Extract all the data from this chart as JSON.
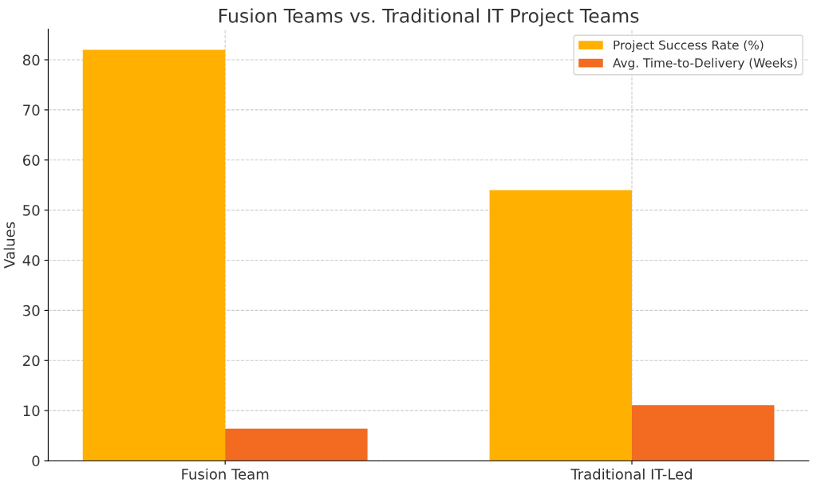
{
  "chart_data": {
    "type": "bar",
    "title": "Fusion Teams vs. Traditional IT Project Teams",
    "ylabel": "Values",
    "categories": [
      "Fusion Team",
      "Traditional IT-Led"
    ],
    "series": [
      {
        "name": "Project Success Rate (%)",
        "color": "#ffb000",
        "values": [
          82,
          54
        ]
      },
      {
        "name": "Avg. Time-to-Delivery (Weeks)",
        "color": "#f26b21",
        "values": [
          6.4,
          11.1
        ]
      }
    ],
    "ylim": [
      0,
      86.1
    ],
    "yticks": [
      0,
      10,
      20,
      30,
      40,
      50,
      60,
      70,
      80
    ],
    "grid": true,
    "legend": "top right"
  }
}
